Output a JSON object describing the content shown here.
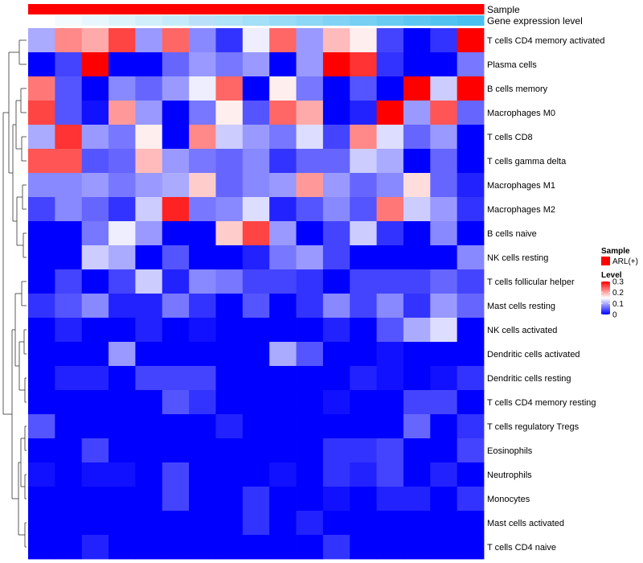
{
  "chart_data": {
    "type": "heatmap",
    "rows": [
      "T cells CD4 memory activated",
      "Plasma cells",
      "B cells memory",
      "Macrophages M0",
      "T cells CD8",
      "T cells gamma delta",
      "Macrophages M1",
      "Macrophages M2",
      "B cells naive",
      "NK cells resting",
      "T cells follicular helper",
      "Mast cells resting",
      "NK cells activated",
      "Dendritic cells activated",
      "Dendritic cells resting",
      "T cells CD4 memory resting",
      "T cells regulatory  Tregs",
      "Eosinophils",
      "Neutrophils",
      "Monocytes",
      "Mast cells activated",
      "T cells CD4 naive"
    ],
    "values": [
      [
        0.1,
        0.22,
        0.2,
        0.26,
        0.09,
        0.24,
        0.08,
        0.03,
        0.14,
        0.24,
        0.09,
        0.19,
        0.16,
        0.04,
        0.0,
        0.03,
        0.3
      ],
      [
        0.0,
        0.04,
        0.3,
        0.0,
        0.0,
        0.06,
        0.09,
        0.07,
        0.09,
        0.0,
        0.09,
        0.3,
        0.27,
        0.03,
        0.0,
        0.0,
        0.07
      ],
      [
        0.23,
        0.05,
        0.0,
        0.08,
        0.06,
        0.09,
        0.14,
        0.24,
        0.0,
        0.16,
        0.07,
        0.0,
        0.05,
        0.0,
        0.3,
        0.12,
        0.3
      ],
      [
        0.26,
        0.05,
        0.01,
        0.21,
        0.09,
        0.0,
        0.07,
        0.16,
        0.05,
        0.24,
        0.2,
        0.0,
        0.02,
        0.3,
        0.09,
        0.25,
        0.06
      ],
      [
        0.1,
        0.27,
        0.09,
        0.07,
        0.16,
        0.0,
        0.22,
        0.12,
        0.09,
        0.07,
        0.13,
        0.04,
        0.22,
        0.13,
        0.06,
        0.09,
        0.0
      ],
      [
        0.25,
        0.25,
        0.05,
        0.06,
        0.19,
        0.09,
        0.07,
        0.06,
        0.08,
        0.03,
        0.06,
        0.06,
        0.12,
        0.1,
        0.0,
        0.06,
        0.0
      ],
      [
        0.08,
        0.08,
        0.09,
        0.07,
        0.09,
        0.1,
        0.18,
        0.06,
        0.08,
        0.09,
        0.21,
        0.09,
        0.06,
        0.08,
        0.17,
        0.06,
        0.02
      ],
      [
        0.04,
        0.08,
        0.06,
        0.03,
        0.12,
        0.28,
        0.07,
        0.08,
        0.13,
        0.02,
        0.05,
        0.08,
        0.05,
        0.23,
        0.12,
        0.09,
        0.03
      ],
      [
        0.0,
        0.0,
        0.07,
        0.14,
        0.09,
        0.0,
        0.0,
        0.18,
        0.26,
        0.09,
        0.0,
        0.04,
        0.12,
        0.03,
        0.0,
        0.08,
        0.0
      ],
      [
        0.0,
        0.0,
        0.12,
        0.1,
        0.0,
        0.05,
        0.0,
        0.0,
        0.02,
        0.07,
        0.09,
        0.04,
        0.0,
        0.0,
        0.0,
        0.0,
        0.08
      ],
      [
        0.0,
        0.04,
        0.0,
        0.04,
        0.12,
        0.02,
        0.08,
        0.07,
        0.04,
        0.04,
        0.03,
        0.0,
        0.04,
        0.04,
        0.04,
        0.06,
        0.04
      ],
      [
        0.03,
        0.05,
        0.08,
        0.02,
        0.02,
        0.07,
        0.03,
        0.0,
        0.05,
        0.0,
        0.03,
        0.08,
        0.04,
        0.08,
        0.03,
        0.09,
        0.06
      ],
      [
        0.0,
        0.02,
        0.0,
        0.0,
        0.02,
        0.0,
        0.01,
        0.0,
        0.0,
        0.0,
        0.0,
        0.02,
        0.0,
        0.05,
        0.1,
        0.13,
        0.0
      ],
      [
        0.0,
        0.0,
        0.0,
        0.09,
        0.0,
        0.0,
        0.0,
        0.0,
        0.0,
        0.1,
        0.05,
        0.0,
        0.0,
        0.01,
        0.0,
        0.0,
        0.0
      ],
      [
        0.0,
        0.02,
        0.02,
        0.0,
        0.04,
        0.04,
        0.04,
        0.0,
        0.0,
        0.0,
        0.0,
        0.0,
        0.02,
        0.01,
        0.0,
        0.01,
        0.03
      ],
      [
        0.0,
        0.0,
        0.0,
        0.0,
        0.0,
        0.05,
        0.03,
        0.0,
        0.0,
        0.0,
        0.0,
        0.01,
        0.0,
        0.0,
        0.04,
        0.04,
        0.0
      ],
      [
        0.05,
        0.0,
        0.0,
        0.0,
        0.0,
        0.0,
        0.0,
        0.02,
        0.0,
        0.0,
        0.0,
        0.0,
        0.0,
        0.0,
        0.06,
        0.0,
        0.03
      ],
      [
        0.0,
        0.0,
        0.04,
        0.0,
        0.0,
        0.0,
        0.0,
        0.0,
        0.0,
        0.0,
        0.0,
        0.03,
        0.03,
        0.04,
        0.0,
        0.0,
        0.04
      ],
      [
        0.01,
        0.0,
        0.01,
        0.01,
        0.0,
        0.04,
        0.0,
        0.0,
        0.0,
        0.01,
        0.0,
        0.03,
        0.02,
        0.04,
        0.0,
        0.02,
        0.0
      ],
      [
        0.0,
        0.0,
        0.0,
        0.0,
        0.0,
        0.04,
        0.0,
        0.0,
        0.03,
        0.0,
        0.0,
        0.01,
        0.0,
        0.02,
        0.02,
        0.0,
        0.03
      ],
      [
        0.0,
        0.0,
        0.0,
        0.0,
        0.0,
        0.0,
        0.0,
        0.0,
        0.03,
        0.0,
        0.02,
        0.0,
        0.0,
        0.0,
        0.0,
        0.0,
        0.0
      ],
      [
        0.0,
        0.0,
        0.02,
        0.0,
        0.0,
        0.0,
        0.0,
        0.0,
        0.0,
        0.0,
        0.0,
        0.03,
        0.0,
        0.0,
        0.0,
        0.0,
        0.0
      ]
    ],
    "annotations": [
      {
        "name": "Sample",
        "colors": [
          "#ff0000",
          "#ff0000",
          "#ff0000",
          "#ff0000",
          "#ff0000",
          "#ff0000",
          "#ff0000",
          "#ff0000",
          "#ff0000",
          "#ff0000",
          "#ff0000",
          "#ff0000",
          "#ff0000",
          "#ff0000",
          "#ff0000",
          "#ff0000",
          "#ff0000"
        ]
      },
      {
        "name": "Gene expression level",
        "colors": [
          "#ffffff",
          "#f3fbfe",
          "#e8f7fd",
          "#dcf3fc",
          "#d1effb",
          "#c5ebfa",
          "#badff9",
          "#aee3f8",
          "#a3dff7",
          "#97dbf6",
          "#8cd7f5",
          "#80d3f4",
          "#75cff3",
          "#69cbf2",
          "#5ec7f1",
          "#52c3f0",
          "#47bfef"
        ]
      }
    ],
    "legend": {
      "sample_title": "Sample",
      "sample_item": "ARL(+)",
      "sample_color": "#ff0000",
      "level_title": "Level",
      "ticks": [
        "0.3",
        "0.2",
        "0.1",
        "0"
      ],
      "tick_values": [
        0.3,
        0.2,
        0.1,
        0
      ]
    },
    "color_scale": {
      "min": 0,
      "mid": 0.15,
      "max": 0.3,
      "low": "#0000ff",
      "midcolor": "#ffffff",
      "high": "#ff0000"
    },
    "row_dendrogram": true,
    "column_dendrogram": false
  }
}
